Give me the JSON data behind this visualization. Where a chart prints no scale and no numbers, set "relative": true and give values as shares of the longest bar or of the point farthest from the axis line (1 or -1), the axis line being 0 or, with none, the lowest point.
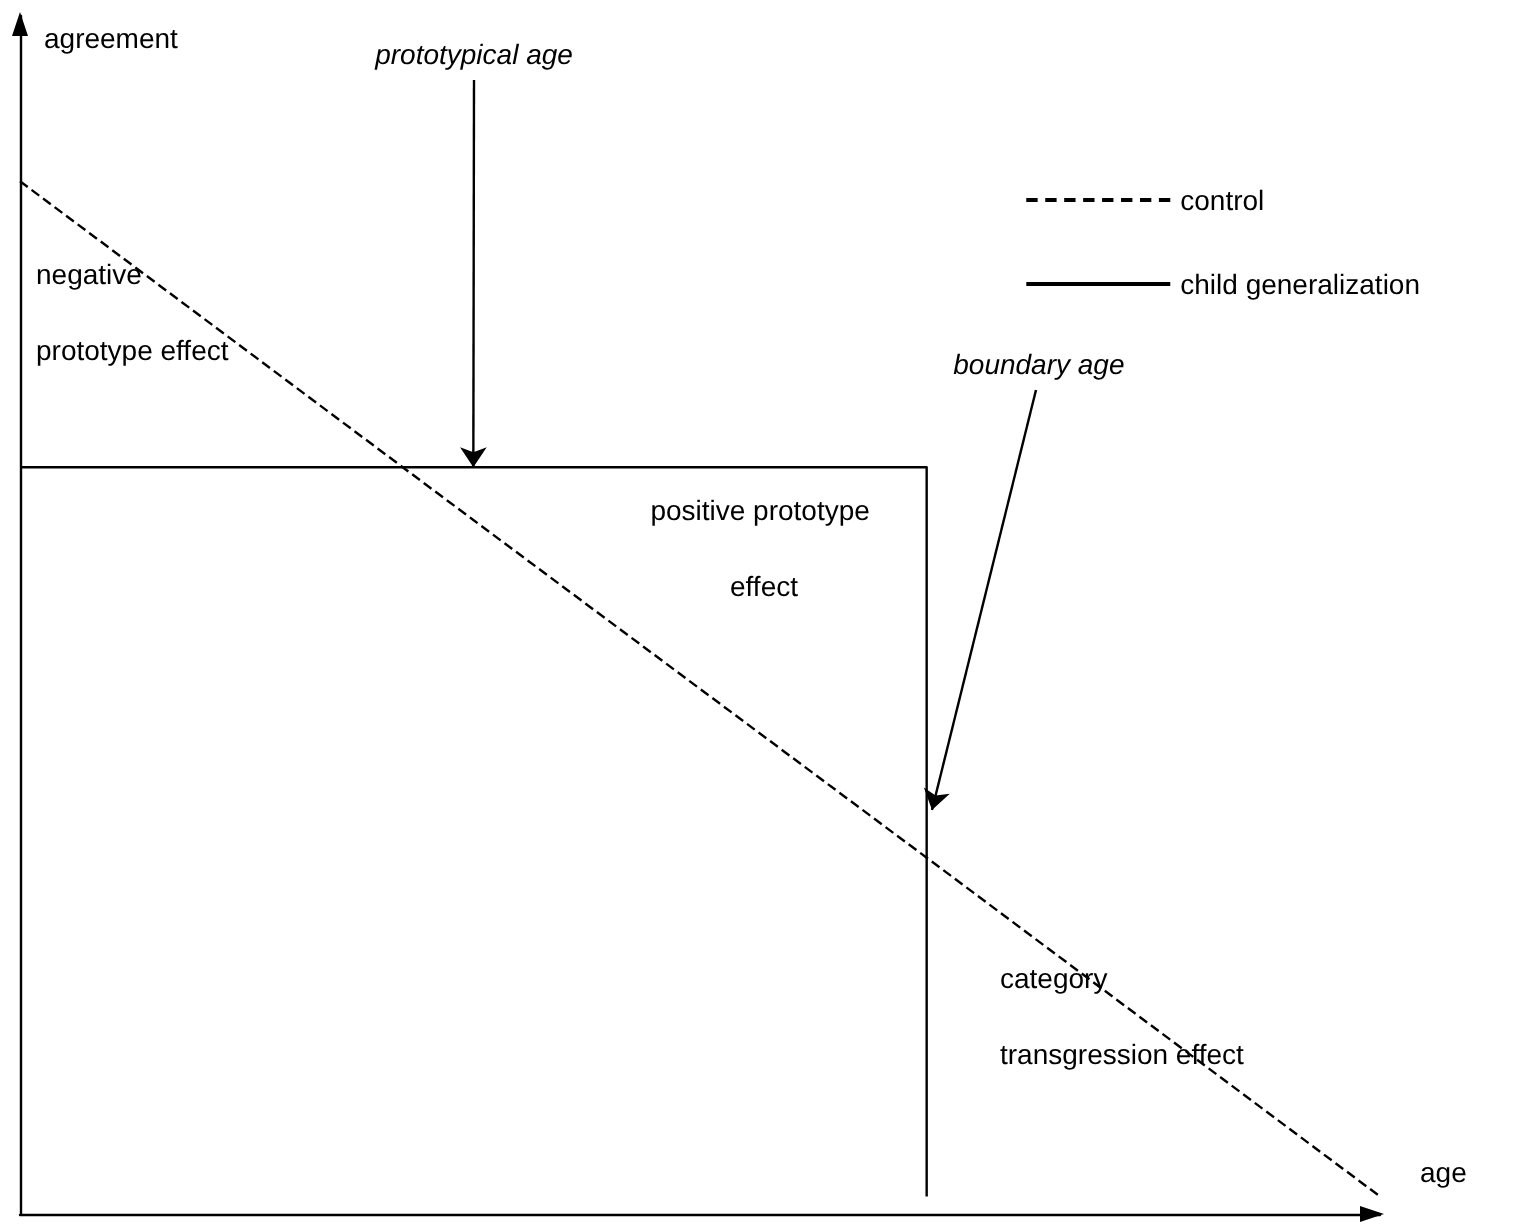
{
  "chart_data": {
    "type": "line",
    "relative": true,
    "xlabel": "age",
    "ylabel": "agreement",
    "categories": [
      null,
      null,
      null,
      null
    ],
    "tick_labels": false,
    "grid": false,
    "legend": "top right",
    "marker": "none",
    "series": [
      {
        "name": "control",
        "color": "#000000",
        "line_style": "dashed",
        "values": [
          1,
          0.672,
          0.345,
          0.017
        ]
      },
      {
        "name": "child generalization",
        "type": "step",
        "color": "#000000",
        "line_style": "solid",
        "values": [
          0.723,
          0.723,
          0.017,
          null
        ]
      }
    ],
    "annotations": [
      {
        "text": "prototypical age",
        "y": 0.723
      },
      "boundary age",
      "negative prototype effect",
      "positive prototype effect",
      "category transgression effect"
    ]
  }
}
